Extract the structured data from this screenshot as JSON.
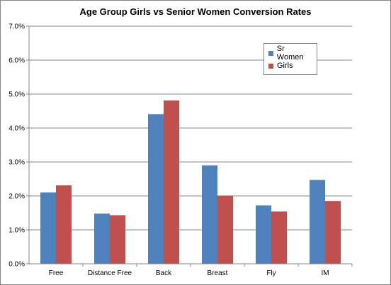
{
  "chart_data": {
    "type": "bar",
    "title": "Age Group Girls vs Senior Women Conversion Rates",
    "xlabel": "",
    "ylabel": "",
    "categories": [
      "Free",
      "Distance Free",
      "Back",
      "Breast",
      "Fly",
      "IM"
    ],
    "series": [
      {
        "name": "Sr Women",
        "color": "#4f81bd",
        "values": [
          2.1,
          1.48,
          4.41,
          2.9,
          1.72,
          2.47
        ]
      },
      {
        "name": "Girls",
        "color": "#c0504d",
        "values": [
          2.31,
          1.43,
          4.81,
          2.01,
          1.54,
          1.85
        ]
      }
    ],
    "ylim": [
      0,
      7
    ],
    "yticks": [
      0,
      1,
      2,
      3,
      4,
      5,
      6,
      7
    ],
    "ytick_labels": [
      "0.0%",
      "1.0%",
      "2.0%",
      "3.0%",
      "4.0%",
      "5.0%",
      "6.0%",
      "7.0%"
    ],
    "grid": true,
    "legend_position": "top-right"
  }
}
